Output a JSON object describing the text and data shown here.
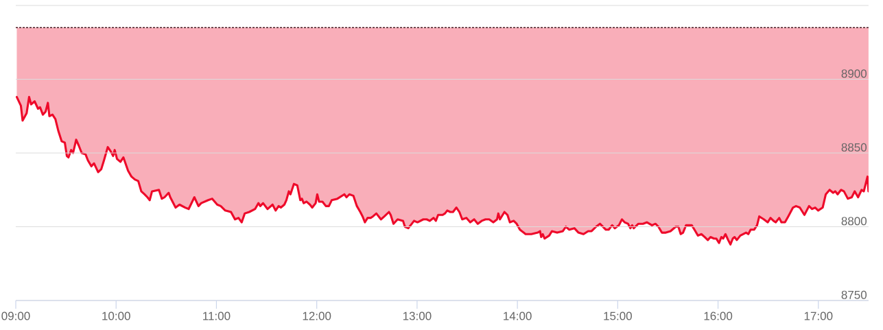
{
  "chart_data": {
    "type": "line",
    "x": [
      9.01,
      9.051,
      9.068,
      9.108,
      9.133,
      9.153,
      9.188,
      9.222,
      9.242,
      9.27,
      9.297,
      9.32,
      9.335,
      9.366,
      9.395,
      9.424,
      9.457,
      9.489,
      9.509,
      9.525,
      9.552,
      9.571,
      9.602,
      9.628,
      9.657,
      9.696,
      9.719,
      9.753,
      9.78,
      9.821,
      9.852,
      9.879,
      9.917,
      9.947,
      9.97,
      9.986,
      10.009,
      10.043,
      10.073,
      10.119,
      10.153,
      10.187,
      10.221,
      10.251,
      10.283,
      10.312,
      10.335,
      10.358,
      10.427,
      10.456,
      10.483,
      10.524,
      10.54,
      10.593,
      10.632,
      10.689,
      10.723,
      10.78,
      10.821,
      10.848,
      10.917,
      10.958,
      11.008,
      11.043,
      11.088,
      11.145,
      11.185,
      11.22,
      11.252,
      11.282,
      11.327,
      11.385,
      11.419,
      11.437,
      11.465,
      11.51,
      11.56,
      11.59,
      11.62,
      11.642,
      11.677,
      11.697,
      11.722,
      11.738,
      11.772,
      11.806,
      11.836,
      11.852,
      11.87,
      11.898,
      11.932,
      11.955,
      11.989,
      12.005,
      12.023,
      12.057,
      12.091,
      12.121,
      12.149,
      12.206,
      12.275,
      12.297,
      12.325,
      12.365,
      12.4,
      12.434,
      12.457,
      12.48,
      12.507,
      12.537,
      12.56,
      12.594,
      12.64,
      12.674,
      12.72,
      12.737,
      12.765,
      12.806,
      12.86,
      12.879,
      12.913,
      12.97,
      13.004,
      13.062,
      13.096,
      13.126,
      13.165,
      13.187,
      13.21,
      13.255,
      13.278,
      13.301,
      13.331,
      13.358,
      13.392,
      13.422,
      13.45,
      13.491,
      13.53,
      13.569,
      13.605,
      13.644,
      13.682,
      13.719,
      13.76,
      13.797,
      13.81,
      13.826,
      13.871,
      13.901,
      13.925,
      13.963,
      13.993,
      14.025,
      14.082,
      14.139,
      14.202,
      14.226,
      14.237,
      14.253,
      14.271,
      14.317,
      14.344,
      14.396,
      14.453,
      14.483,
      14.517,
      14.568,
      14.609,
      14.659,
      14.705,
      14.739,
      14.784,
      14.823,
      14.882,
      14.91,
      14.944,
      14.971,
      15.012,
      15.042,
      15.069,
      15.103,
      15.126,
      15.144,
      15.16,
      15.206,
      15.251,
      15.292,
      15.342,
      15.376,
      15.406,
      15.44,
      15.479,
      15.526,
      15.578,
      15.605,
      15.628,
      15.651,
      15.681,
      15.738,
      15.765,
      15.8,
      15.834,
      15.868,
      15.898,
      15.925,
      15.96,
      15.982,
      16.01,
      16.033,
      16.051,
      16.074,
      16.101,
      16.124,
      16.147,
      16.165,
      16.187,
      16.222,
      16.279,
      16.302,
      16.325,
      16.359,
      16.389,
      16.411,
      16.457,
      16.495,
      16.523,
      16.553,
      16.575,
      16.61,
      16.632,
      16.667,
      16.7,
      16.747,
      16.777,
      16.815,
      16.861,
      16.907,
      16.937,
      16.968,
      16.998,
      17.043,
      17.074,
      17.112,
      17.147,
      17.169,
      17.192,
      17.226,
      17.255,
      17.294,
      17.333,
      17.362,
      17.396,
      17.431,
      17.453,
      17.49,
      17.5
    ],
    "series": [
      {
        "color": "#ee0a2a",
        "values": [
          8888,
          8882,
          8872,
          8877,
          8888,
          8883,
          8885,
          8880,
          8881,
          8876,
          8878,
          8884,
          8875,
          8876,
          8873,
          8865,
          8858,
          8857,
          8848,
          8847,
          8852,
          8850,
          8859,
          8855,
          8850,
          8849,
          8845,
          8841,
          8843,
          8837,
          8839,
          8845,
          8854,
          8851,
          8848,
          8852,
          8846,
          8844,
          8847,
          8838,
          8834,
          8832,
          8831,
          8824,
          8822,
          8820,
          8818,
          8824,
          8825,
          8819,
          8820,
          8823,
          8820,
          8813,
          8815,
          8813,
          8812,
          8820,
          8814,
          8816,
          8818,
          8819,
          8815,
          8814,
          8811,
          8810,
          8805,
          8806,
          8803,
          8809,
          8810,
          8812,
          8816,
          8814,
          8816,
          8812,
          8815,
          8811,
          8814,
          8813,
          8815,
          8818,
          8824,
          8822,
          8829,
          8828,
          8818,
          8819,
          8816,
          8817,
          8815,
          8813,
          8816,
          8822,
          8817,
          8817,
          8814,
          8814,
          8818,
          8819,
          8822,
          8820,
          8822,
          8821,
          8814,
          8810,
          8807,
          8803,
          8806,
          8806,
          8807,
          8809,
          8805,
          8807,
          8810,
          8808,
          8802,
          8805,
          8804,
          8800,
          8799,
          8804,
          8803,
          8805,
          8805,
          8804,
          8806,
          8804,
          8808,
          8808,
          8809,
          8811,
          8810,
          8810,
          8813,
          8810,
          8805,
          8806,
          8803,
          8805,
          8802,
          8804,
          8805,
          8805,
          8803,
          8805,
          8809,
          8805,
          8810,
          8808,
          8803,
          8804,
          8802,
          8798,
          8795,
          8795,
          8796,
          8797,
          8793,
          8795,
          8792,
          8794,
          8797,
          8796,
          8797,
          8800,
          8798,
          8799,
          8796,
          8795,
          8797,
          8797,
          8800,
          8802,
          8798,
          8798,
          8801,
          8799,
          8801,
          8805,
          8803,
          8802,
          8799,
          8801,
          8799,
          8802,
          8802,
          8803,
          8801,
          8802,
          8800,
          8796,
          8796,
          8797,
          8800,
          8800,
          8795,
          8796,
          8801,
          8801,
          8798,
          8794,
          8795,
          8793,
          8791,
          8793,
          8792,
          8792,
          8789,
          8793,
          8792,
          8795,
          8791,
          8788,
          8792,
          8793,
          8791,
          8794,
          8796,
          8795,
          8798,
          8798,
          8801,
          8807,
          8805,
          8803,
          8806,
          8804,
          8803,
          8806,
          8803,
          8803,
          8807,
          8813,
          8814,
          8813,
          8808,
          8814,
          8812,
          8813,
          8811,
          8813,
          8822,
          8825,
          8823,
          8824,
          8822,
          8825,
          8824,
          8819,
          8820,
          8824,
          8820,
          8825,
          8824,
          8834,
          8824
        ],
        "lower": [
          8888,
          8882,
          8872,
          8877,
          8888,
          8883,
          8885,
          8880,
          8881,
          8876,
          8878,
          8884,
          8875,
          8876,
          8873,
          8865,
          8858,
          8857,
          8848,
          8847,
          8852,
          8850,
          8859,
          8855,
          8850,
          8849,
          8845,
          8841,
          8843,
          8837,
          8839,
          8845,
          8854,
          8851,
          8848,
          8852,
          8846,
          8844,
          8847,
          8838,
          8834,
          8832,
          8831,
          8824,
          8822,
          8820,
          8818,
          8824,
          8825,
          8819,
          8820,
          8823,
          8820,
          8813,
          8815,
          8813,
          8812,
          8820,
          8814,
          8816,
          8818,
          8819,
          8815,
          8814,
          8811,
          8810,
          8805,
          8806,
          8803,
          8809,
          8810,
          8812,
          8816,
          8814,
          8816,
          8812,
          8815,
          8811,
          8814,
          8813,
          8815,
          8818,
          8824,
          8822,
          8829,
          8828,
          8818,
          8819,
          8816,
          8817,
          8815,
          8813,
          8816,
          8822,
          8817,
          8817,
          8814,
          8814,
          8818,
          8819,
          8822,
          8820,
          8822,
          8821,
          8814,
          8810,
          8807,
          8803,
          8806,
          8806,
          8807,
          8809,
          8805,
          8807,
          8810,
          8808,
          8802,
          8805,
          8804,
          8800,
          8799,
          8804,
          8803,
          8805,
          8805,
          8804,
          8806,
          8804,
          8808,
          8808,
          8809,
          8811,
          8810,
          8810,
          8813,
          8810,
          8805,
          8806,
          8803,
          8805,
          8802,
          8804,
          8805,
          8805,
          8803,
          8805,
          8809,
          8805,
          8810,
          8808,
          8803,
          8804,
          8802,
          8798,
          8795,
          8795,
          8796,
          8797,
          8793,
          8795,
          8792,
          8794,
          8797,
          8796,
          8797,
          8800,
          8798,
          8799,
          8796,
          8795,
          8797,
          8797,
          8800,
          8802,
          8798,
          8798,
          8801,
          8799,
          8801,
          8805,
          8803,
          8802,
          8799,
          8801,
          8799,
          8802,
          8802,
          8803,
          8801,
          8802,
          8800,
          8796,
          8796,
          8797,
          8800,
          8800,
          8795,
          8796,
          8801,
          8801,
          8798,
          8794,
          8795,
          8793,
          8791,
          8793,
          8792,
          8792,
          8789,
          8793,
          8792,
          8795,
          8791,
          8788,
          8792,
          8793,
          8791,
          8794,
          8796,
          8795,
          8798,
          8798,
          8801,
          8807,
          8805,
          8803,
          8806,
          8804,
          8803,
          8806,
          8803,
          8803,
          8807,
          8813,
          8814,
          8813,
          8808,
          8814,
          8812,
          8813,
          8811,
          8813,
          8822,
          8825,
          8823,
          8824,
          8822,
          8825,
          8824,
          8819,
          8820,
          8824,
          8820,
          8825,
          8824,
          8834,
          8824
        ],
        "upper": [
          8935,
          8935,
          8935,
          8935,
          8935,
          8935,
          8935,
          8935,
          8935,
          8935,
          8935,
          8935,
          8935,
          8935,
          8935,
          8935,
          8935,
          8935,
          8935,
          8935,
          8935,
          8935,
          8935,
          8935,
          8935,
          8935,
          8935,
          8935,
          8935,
          8935,
          8935,
          8935,
          8935,
          8935,
          8935,
          8935,
          8935,
          8935,
          8935,
          8935,
          8935,
          8935,
          8935,
          8935,
          8935,
          8935,
          8935,
          8935,
          8935,
          8935,
          8935,
          8935,
          8935,
          8935,
          8935,
          8935,
          8935,
          8935,
          8935,
          8935,
          8935,
          8935,
          8935,
          8935,
          8935,
          8935,
          8935,
          8935,
          8935,
          8935,
          8935,
          8935,
          8935,
          8935,
          8935,
          8935,
          8935,
          8935,
          8935,
          8935,
          8935,
          8935,
          8935,
          8935,
          8935,
          8935,
          8935,
          8935,
          8935,
          8935,
          8935,
          8935,
          8935,
          8935,
          8935,
          8935,
          8935,
          8935,
          8935,
          8935,
          8935,
          8935,
          8935,
          8935,
          8935,
          8935,
          8935,
          8935,
          8935,
          8935,
          8935,
          8935,
          8935,
          8935,
          8935,
          8935,
          8935,
          8935,
          8935,
          8935,
          8935,
          8935,
          8935,
          8935,
          8935,
          8935,
          8935,
          8935,
          8935,
          8935,
          8935,
          8935,
          8935,
          8935,
          8935,
          8935,
          8935,
          8935,
          8935,
          8935,
          8935,
          8935,
          8935,
          8935,
          8935,
          8935,
          8935,
          8935,
          8935,
          8935,
          8935,
          8935,
          8935,
          8935,
          8935,
          8935,
          8935,
          8935,
          8935,
          8935,
          8935,
          8935,
          8935,
          8935,
          8935,
          8935,
          8935,
          8935,
          8935,
          8935,
          8935,
          8935,
          8935,
          8935,
          8935,
          8935,
          8935,
          8935,
          8935,
          8935,
          8935,
          8935,
          8935,
          8935,
          8935,
          8935,
          8935,
          8935,
          8935,
          8935,
          8935,
          8935,
          8935,
          8935,
          8935,
          8935,
          8935,
          8935,
          8935,
          8935,
          8935,
          8935,
          8935,
          8935,
          8935,
          8935,
          8935,
          8935,
          8935,
          8935,
          8935,
          8935,
          8935,
          8935,
          8935,
          8935,
          8935,
          8935,
          8935,
          8935,
          8935,
          8935,
          8935,
          8935,
          8935,
          8935,
          8935,
          8935,
          8935,
          8935,
          8935,
          8935,
          8935,
          8935,
          8935,
          8935,
          8935,
          8935,
          8935,
          8935,
          8935,
          8935,
          8935,
          8935,
          8935,
          8935,
          8935,
          8935,
          8935,
          8935,
          8935,
          8935,
          8935,
          8935,
          8935,
          8935,
          8935
        ]
      }
    ],
    "xlim": [
      9,
      17.5
    ],
    "xticks": [
      {
        "value": 9,
        "label": "09:00"
      },
      {
        "value": 10,
        "label": "10:00"
      },
      {
        "value": 11,
        "label": "11:00"
      },
      {
        "value": 12,
        "label": "12:00"
      },
      {
        "value": 13,
        "label": "13:00"
      },
      {
        "value": 14,
        "label": "14:00"
      },
      {
        "value": 15,
        "label": "15:00"
      },
      {
        "value": 16,
        "label": "16:00"
      },
      {
        "value": 17,
        "label": "17:00"
      }
    ],
    "ylim": [
      8750,
      8950
    ],
    "yticks": [
      8750,
      8800,
      8850,
      8900,
      {
        "value": 8950,
        "label": null
      }
    ],
    "grid": "y",
    "ref_lines": [
      {
        "axis": "y",
        "value": 8935,
        "color": "#4a1a22",
        "line_style": "dashed"
      }
    ]
  }
}
